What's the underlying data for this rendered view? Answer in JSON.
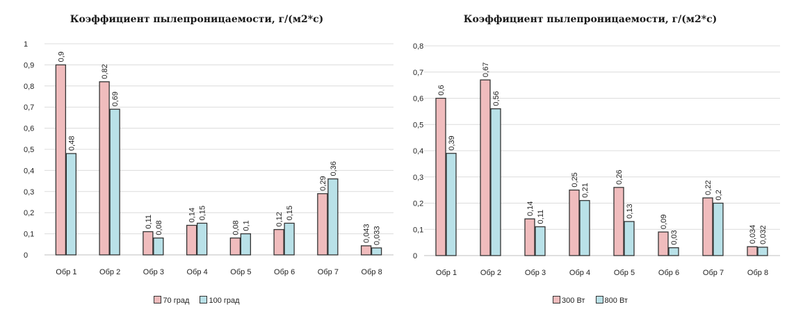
{
  "chart_data": [
    {
      "type": "bar",
      "title": "Коэффициент пылепроницаемости,  г/(м2*с)",
      "categories": [
        "Обр 1",
        "Обр 2",
        "Обр 3",
        "Обр 4",
        "Обр 5",
        "Обр 6",
        "Обр 7",
        "Обр 8"
      ],
      "series": [
        {
          "name": "70 град",
          "values": [
            0.9,
            0.82,
            0.11,
            0.14,
            0.08,
            0.12,
            0.29,
            0.043
          ],
          "labels": [
            "0,9",
            "0,82",
            "0,11",
            "0,14",
            "0,08",
            "0,12",
            "0,29",
            "0,043"
          ],
          "color": "#f0bcbd"
        },
        {
          "name": "100 град",
          "values": [
            0.48,
            0.69,
            0.08,
            0.15,
            0.1,
            0.15,
            0.36,
            0.033
          ],
          "labels": [
            "0,48",
            "0,69",
            "0,08",
            "0,15",
            "0,1",
            "0,15",
            "0,36",
            "0,033"
          ],
          "color": "#b9e1e8"
        }
      ],
      "yticks": [
        "0",
        "0,1",
        "0,2",
        "0,3",
        "0,4",
        "0,5",
        "0,6",
        "0,7",
        "0,8",
        "0,9",
        "1"
      ],
      "ylim": [
        0,
        1
      ],
      "legend_position": "bottom",
      "grid": true
    },
    {
      "type": "bar",
      "title": "Коэффициент пылепроницаемости, г/(м2*с)",
      "categories": [
        "Обр 1",
        "Обр 2",
        "Обр 3",
        "Обр 4",
        "Обр 5",
        "Обр 6",
        "Обр 7",
        "Обр 8"
      ],
      "series": [
        {
          "name": "300 Вт",
          "values": [
            0.6,
            0.67,
            0.14,
            0.25,
            0.26,
            0.09,
            0.22,
            0.034
          ],
          "labels": [
            "0,6",
            "0,67",
            "0,14",
            "0,25",
            "0,26",
            "0,09",
            "0,22",
            "0,034"
          ],
          "color": "#f0bcbd"
        },
        {
          "name": "800 Вт",
          "values": [
            0.39,
            0.56,
            0.11,
            0.21,
            0.13,
            0.03,
            0.2,
            0.032
          ],
          "labels": [
            "0,39",
            "0,56",
            "0,11",
            "0,21",
            "0,13",
            "0,03",
            "0,2",
            "0,032"
          ],
          "color": "#b9e1e8"
        }
      ],
      "yticks": [
        "0",
        "0,1",
        "0,2",
        "0,3",
        "0,4",
        "0,5",
        "0,6",
        "0,7",
        "0,8"
      ],
      "ylim": [
        0,
        0.8
      ],
      "legend_position": "bottom",
      "grid": true
    }
  ]
}
